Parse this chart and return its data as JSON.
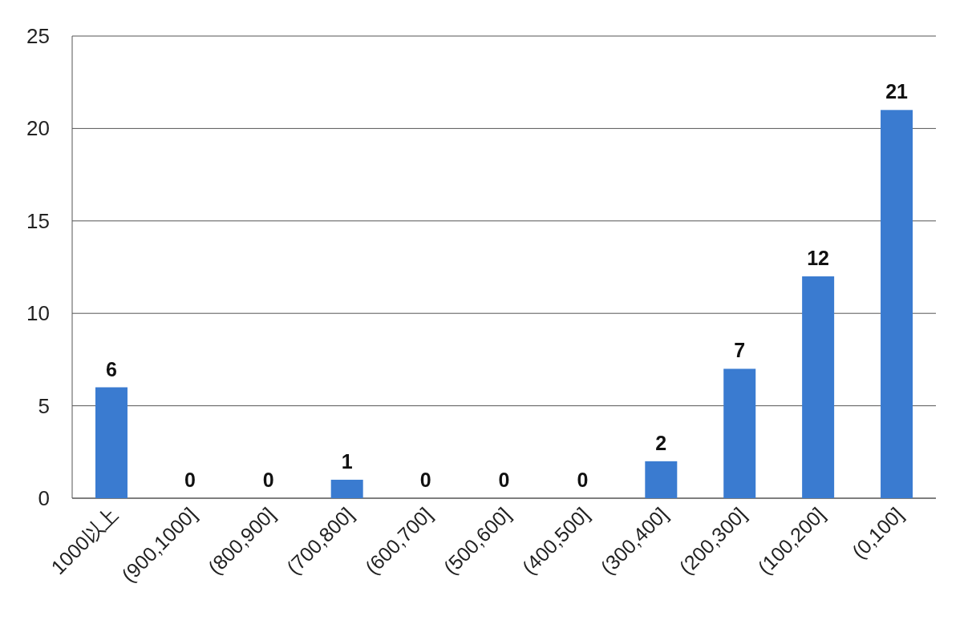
{
  "chart_data": {
    "type": "bar",
    "categories": [
      "1000以上",
      "(900,1000]",
      "(800,900]",
      "(700,800]",
      "(600,700]",
      "(500,600]",
      "(400,500]",
      "(300,400]",
      "(200,300]",
      "(100,200]",
      "(0,100]"
    ],
    "values": [
      6,
      0,
      0,
      1,
      0,
      0,
      0,
      2,
      7,
      12,
      21
    ],
    "color": "#3a7bd0",
    "ylim": [
      0,
      25
    ],
    "yticks": [
      0,
      5,
      10,
      15,
      20,
      25
    ],
    "grid": "y",
    "data_labels": true
  }
}
